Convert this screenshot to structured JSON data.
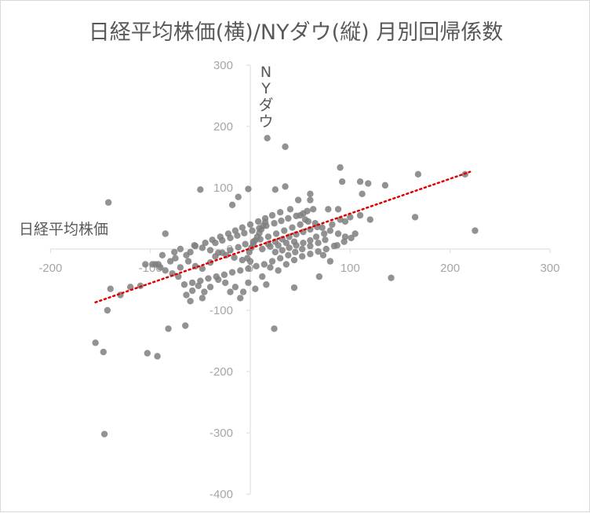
{
  "chart_data": {
    "type": "scatter",
    "title": "日経平均株価(横)/NYダウ(縦) 月別回帰係数",
    "xlabel": "日経平均株価",
    "ylabel": "NYダウ",
    "xlim": [
      -200,
      300
    ],
    "ylim": [
      -400,
      300
    ],
    "xticks": [
      -200,
      -100,
      0,
      100,
      200,
      300
    ],
    "yticks": [
      -400,
      -300,
      -200,
      -100,
      0,
      100,
      200,
      300
    ],
    "trendline": {
      "type": "linear",
      "color": "#e00000",
      "style": "dotted",
      "x": [
        -155,
        220
      ],
      "y": [
        -87,
        126
      ]
    },
    "grid": false,
    "colors": {
      "points": "#7f7f7f",
      "axis": "#d9d9d9",
      "text": "#595959",
      "ticks": "#a6a6a6"
    },
    "points": [
      [
        17,
        181
      ],
      [
        35,
        167
      ],
      [
        90,
        133
      ],
      [
        168,
        122
      ],
      [
        215,
        122
      ],
      [
        225,
        30
      ],
      [
        -142,
        76
      ],
      [
        -50,
        97
      ],
      [
        -2,
        98
      ],
      [
        25,
        97
      ],
      [
        35,
        102
      ],
      [
        60,
        90
      ],
      [
        110,
        110
      ],
      [
        118,
        107
      ],
      [
        135,
        104
      ],
      [
        112,
        90
      ],
      [
        -18,
        72
      ],
      [
        -12,
        85
      ],
      [
        48,
        80
      ],
      [
        60,
        80
      ],
      [
        92,
        110
      ],
      [
        -85,
        25
      ],
      [
        -155,
        -153
      ],
      [
        -146,
        -302
      ],
      [
        -103,
        -170
      ],
      [
        -93,
        -175
      ],
      [
        -82,
        -130
      ],
      [
        -65,
        -125
      ],
      [
        -147,
        -168
      ],
      [
        -143,
        -100
      ],
      [
        -140,
        -65
      ],
      [
        -130,
        -75
      ],
      [
        -120,
        -62
      ],
      [
        -110,
        -60
      ],
      [
        -95,
        -25
      ],
      [
        -92,
        -25
      ],
      [
        -80,
        -20
      ],
      [
        -75,
        -15
      ],
      [
        -60,
        -5
      ],
      [
        -55,
        5
      ],
      [
        -45,
        10
      ],
      [
        -38,
        15
      ],
      [
        -30,
        20
      ],
      [
        -22,
        25
      ],
      [
        -15,
        30
      ],
      [
        -8,
        35
      ],
      [
        0,
        40
      ],
      [
        8,
        45
      ],
      [
        15,
        50
      ],
      [
        22,
        55
      ],
      [
        30,
        60
      ],
      [
        40,
        65
      ],
      [
        50,
        55
      ],
      [
        55,
        48
      ],
      [
        65,
        42
      ],
      [
        72,
        35
      ],
      [
        80,
        30
      ],
      [
        88,
        25
      ],
      [
        95,
        20
      ],
      [
        105,
        25
      ],
      [
        75,
        15
      ],
      [
        68,
        10
      ],
      [
        60,
        5
      ],
      [
        52,
        0
      ],
      [
        45,
        -5
      ],
      [
        38,
        -10
      ],
      [
        30,
        -15
      ],
      [
        22,
        -20
      ],
      [
        14,
        -25
      ],
      [
        6,
        -28
      ],
      [
        -2,
        -32
      ],
      [
        -10,
        -35
      ],
      [
        -18,
        -38
      ],
      [
        -26,
        -42
      ],
      [
        -34,
        -45
      ],
      [
        -42,
        -48
      ],
      [
        -50,
        -52
      ],
      [
        -58,
        -55
      ],
      [
        -66,
        -58
      ],
      [
        -72,
        -45
      ],
      [
        -78,
        -40
      ],
      [
        -85,
        -35
      ],
      [
        -88,
        -10
      ],
      [
        -70,
        -30
      ],
      [
        -62,
        -20
      ],
      [
        -55,
        -28
      ],
      [
        -48,
        -32
      ],
      [
        -40,
        -22
      ],
      [
        -35,
        -12
      ],
      [
        -28,
        -6
      ],
      [
        -20,
        -2
      ],
      [
        -12,
        3
      ],
      [
        -5,
        8
      ],
      [
        3,
        12
      ],
      [
        10,
        16
      ],
      [
        18,
        20
      ],
      [
        26,
        25
      ],
      [
        34,
        30
      ],
      [
        42,
        35
      ],
      [
        50,
        40
      ],
      [
        58,
        45
      ],
      [
        66,
        20
      ],
      [
        74,
        25
      ],
      [
        82,
        40
      ],
      [
        90,
        48
      ],
      [
        100,
        52
      ],
      [
        110,
        55
      ],
      [
        120,
        48
      ],
      [
        165,
        52
      ],
      [
        141,
        -47
      ],
      [
        24,
        -130
      ],
      [
        44,
        -63
      ],
      [
        -7,
        -70
      ],
      [
        -10,
        -80
      ],
      [
        5,
        -65
      ],
      [
        12,
        -45
      ],
      [
        20,
        -30
      ],
      [
        28,
        -35
      ],
      [
        36,
        -25
      ],
      [
        44,
        -18
      ],
      [
        52,
        -12
      ],
      [
        60,
        -8
      ],
      [
        68,
        -4
      ],
      [
        76,
        0
      ],
      [
        84,
        5
      ],
      [
        -3,
        -15
      ],
      [
        -1,
        -5
      ],
      [
        1,
        2
      ],
      [
        3,
        8
      ],
      [
        5,
        14
      ],
      [
        7,
        20
      ],
      [
        9,
        26
      ],
      [
        11,
        32
      ],
      [
        13,
        38
      ],
      [
        15,
        44
      ],
      [
        -25,
        -55
      ],
      [
        -32,
        -50
      ],
      [
        -40,
        -62
      ],
      [
        -46,
        -70
      ],
      [
        -52,
        -60
      ],
      [
        -58,
        -68
      ],
      [
        -64,
        -75
      ],
      [
        -35,
        10
      ],
      [
        -28,
        14
      ],
      [
        -20,
        18
      ],
      [
        -13,
        22
      ],
      [
        -6,
        26
      ],
      [
        2,
        30
      ],
      [
        9,
        34
      ],
      [
        16,
        38
      ],
      [
        24,
        42
      ],
      [
        31,
        46
      ],
      [
        38,
        50
      ],
      [
        46,
        54
      ],
      [
        53,
        58
      ],
      [
        18,
        8
      ],
      [
        25,
        12
      ],
      [
        32,
        16
      ],
      [
        39,
        20
      ],
      [
        46,
        24
      ],
      [
        53,
        28
      ],
      [
        60,
        32
      ],
      [
        67,
        36
      ],
      [
        25,
        -5
      ],
      [
        32,
        -2
      ],
      [
        39,
        2
      ],
      [
        46,
        6
      ],
      [
        53,
        10
      ],
      [
        60,
        14
      ],
      [
        0,
        -20
      ],
      [
        -8,
        -18
      ],
      [
        -16,
        -14
      ],
      [
        -24,
        -10
      ],
      [
        -32,
        -6
      ],
      [
        -40,
        -2
      ],
      [
        -48,
        2
      ],
      [
        -56,
        6
      ],
      [
        -64,
        -10
      ],
      [
        -70,
        0
      ],
      [
        -76,
        -5
      ],
      [
        12,
        0
      ],
      [
        20,
        4
      ],
      [
        28,
        6
      ],
      [
        36,
        10
      ],
      [
        44,
        12
      ],
      [
        -90,
        -30
      ],
      [
        -98,
        -25
      ],
      [
        73,
        -10
      ],
      [
        80,
        -20
      ],
      [
        87,
        6
      ],
      [
        94,
        12
      ],
      [
        101,
        18
      ],
      [
        69,
        -45
      ],
      [
        -15,
        -62
      ],
      [
        -20,
        -70
      ],
      [
        78,
        65
      ],
      [
        88,
        65
      ],
      [
        -105,
        -25
      ],
      [
        95,
        45
      ],
      [
        57,
        62
      ],
      [
        63,
        65
      ],
      [
        -48,
        -80
      ],
      [
        -60,
        -85
      ],
      [
        -2,
        -55
      ],
      [
        16,
        -58
      ]
    ]
  }
}
